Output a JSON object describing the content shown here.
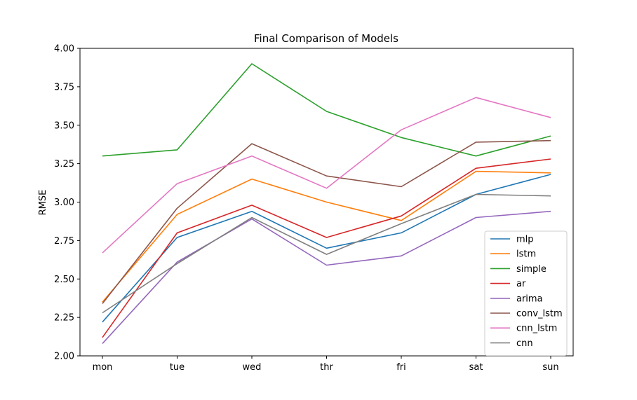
{
  "chart_data": {
    "type": "line",
    "title": "Final Comparison of Models",
    "xlabel": "",
    "ylabel": "RMSE",
    "categories": [
      "mon",
      "tue",
      "wed",
      "thr",
      "fri",
      "sat",
      "sun"
    ],
    "ylim": [
      2.0,
      4.0
    ],
    "yticks": [
      "2.00",
      "2.25",
      "2.50",
      "2.75",
      "3.00",
      "3.25",
      "3.50",
      "3.75",
      "4.00"
    ],
    "grid": false,
    "legend_position": "lower-right",
    "series": [
      {
        "name": "mlp",
        "color": "#1f77b4",
        "values": [
          2.22,
          2.77,
          2.94,
          2.7,
          2.8,
          3.05,
          3.18
        ]
      },
      {
        "name": "lstm",
        "color": "#ff7f0e",
        "values": [
          2.35,
          2.92,
          3.15,
          3.0,
          2.88,
          3.2,
          3.19
        ]
      },
      {
        "name": "simple",
        "color": "#2ca02c",
        "values": [
          3.3,
          3.34,
          3.9,
          3.59,
          3.42,
          3.3,
          3.43
        ]
      },
      {
        "name": "ar",
        "color": "#d62728",
        "values": [
          2.12,
          2.8,
          2.98,
          2.77,
          2.91,
          3.22,
          3.28
        ]
      },
      {
        "name": "arima",
        "color": "#9467bd",
        "values": [
          2.08,
          2.61,
          2.89,
          2.59,
          2.65,
          2.9,
          2.94
        ]
      },
      {
        "name": "conv_lstm",
        "color": "#8c564b",
        "values": [
          2.34,
          2.96,
          3.38,
          3.17,
          3.1,
          3.39,
          3.4
        ]
      },
      {
        "name": "cnn_lstm",
        "color": "#e377c2",
        "values": [
          2.67,
          3.12,
          3.3,
          3.09,
          3.47,
          3.68,
          3.55
        ]
      },
      {
        "name": "cnn",
        "color": "#7f7f7f",
        "values": [
          2.28,
          2.6,
          2.9,
          2.66,
          2.86,
          3.05,
          3.04
        ]
      }
    ]
  }
}
